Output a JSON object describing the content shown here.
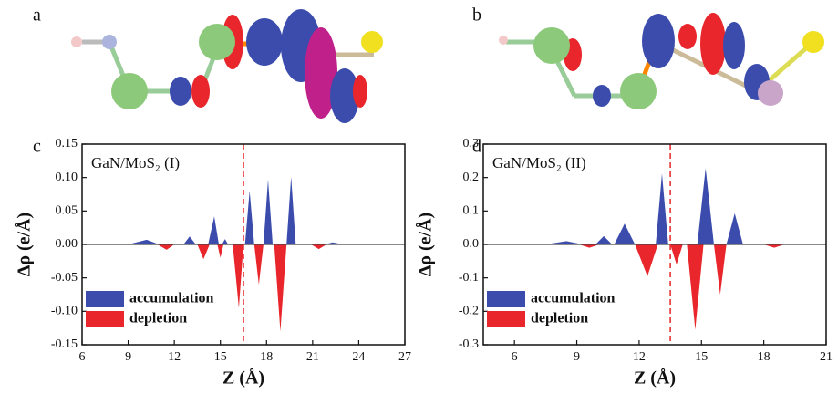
{
  "images": [
    {
      "label": "a"
    },
    {
      "label": "b"
    }
  ],
  "chart_data": [
    {
      "type": "area",
      "panel_label": "c",
      "annotation": "GaN/MoS₂ (I)",
      "x_label": "Z (Å)",
      "y_label": "Δρ (e/Å)",
      "xlim": [
        6,
        27
      ],
      "xticks": [
        6,
        9,
        12,
        15,
        18,
        21,
        24,
        27
      ],
      "ylim": [
        -0.15,
        0.15
      ],
      "yticks": [
        {
          "value": -0.15,
          "label": "-0.15"
        },
        {
          "value": -0.1,
          "label": "-0.10"
        },
        {
          "value": -0.05,
          "label": "-0.05"
        },
        {
          "value": 0,
          "label": "0.00"
        },
        {
          "value": 0.05,
          "label": "0.05"
        },
        {
          "value": 0.1,
          "label": "0.10"
        },
        {
          "value": 0.15,
          "label": "0.15"
        }
      ],
      "vline": 16.5,
      "series": [
        {
          "name": "accumulation",
          "color": "#3b4cad",
          "x": [
            6,
            9,
            10.2,
            11,
            12.6,
            13,
            13.4,
            14.2,
            14.6,
            14.9,
            15.1,
            15.3,
            15.5,
            16.6,
            16.9,
            17.2,
            17.8,
            18.1,
            18.4,
            19.3,
            19.6,
            19.9,
            21.8,
            22.3,
            23,
            27
          ],
          "values": [
            0,
            0,
            0.007,
            0,
            0,
            0.012,
            0,
            0,
            0.042,
            0,
            0,
            0.008,
            0,
            0,
            0.08,
            0,
            0,
            0.097,
            0,
            0,
            0.101,
            0,
            0,
            0.003,
            0,
            0
          ]
        },
        {
          "name": "depletion",
          "color": "#e8262b",
          "x": [
            6,
            10.9,
            11.5,
            12,
            13.5,
            13.9,
            14.3,
            14.8,
            15.0,
            15.2,
            15.8,
            16.2,
            16.5,
            17.2,
            17.5,
            17.8,
            18.5,
            18.9,
            19.3,
            20.9,
            21.4,
            21.9,
            27
          ],
          "values": [
            0,
            0,
            -0.008,
            0,
            0,
            -0.022,
            0,
            0,
            -0.02,
            0,
            0,
            -0.095,
            0,
            0,
            -0.06,
            0,
            0,
            -0.13,
            0,
            0,
            -0.007,
            0,
            0
          ]
        }
      ]
    },
    {
      "type": "area",
      "panel_label": "d",
      "annotation": "GaN/MoS₂ (II)",
      "x_label": "Z (Å)",
      "y_label": "Δρ (e/Å)",
      "xlim": [
        4.5,
        21
      ],
      "xticks": [
        6,
        9,
        12,
        15,
        18,
        21
      ],
      "ylim": [
        -0.3,
        0.3
      ],
      "yticks": [
        -0.3,
        -0.2,
        -0.1,
        {
          "value": 0,
          "label": "0.0"
        },
        0.1,
        0.2,
        0.3
      ],
      "vline": 13.5,
      "series": [
        {
          "name": "accumulation",
          "color": "#3b4cad",
          "x": [
            4.5,
            7.5,
            8.5,
            9.3,
            9.9,
            10.3,
            10.7,
            10.8,
            11.3,
            11.8,
            12.8,
            13.1,
            13.4,
            14.8,
            15.2,
            15.6,
            16.2,
            16.6,
            17.0,
            21
          ],
          "values": [
            0,
            0,
            0.01,
            0,
            0,
            0.025,
            0,
            0,
            0.062,
            0,
            0,
            0.212,
            0,
            0,
            0.228,
            0,
            0,
            0.093,
            0,
            0
          ]
        },
        {
          "name": "depletion",
          "color": "#e8262b",
          "x": [
            4.5,
            9.1,
            9.6,
            10.1,
            11.8,
            12.4,
            12.9,
            13.5,
            13.8,
            14.1,
            14.3,
            14.7,
            15.1,
            15.6,
            15.9,
            16.2,
            18,
            18.5,
            19,
            21
          ],
          "values": [
            0,
            0,
            -0.01,
            0,
            0,
            -0.095,
            0,
            0,
            -0.06,
            0,
            0,
            -0.255,
            0,
            0,
            -0.15,
            0,
            0,
            -0.01,
            0,
            0
          ]
        }
      ]
    }
  ]
}
